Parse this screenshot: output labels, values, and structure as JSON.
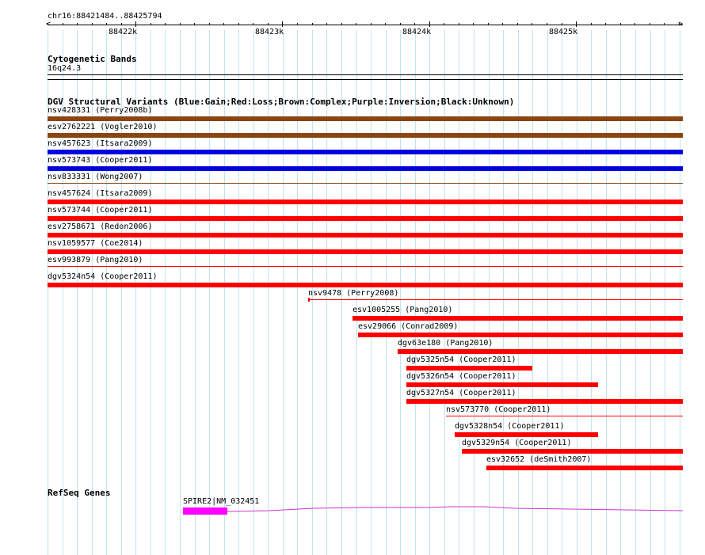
{
  "ruler": {
    "position": "chr16:88421484..88425794",
    "ticks": [
      "88422k",
      "88423k",
      "88424k",
      "88425k"
    ]
  },
  "cytoband": {
    "title": "Cytogenetic Bands",
    "band": "16q24.3"
  },
  "dgv": {
    "title": "DGV Structural Variants (Blue:Gain;Red:Loss;Brown:Complex;Purple:Inversion;Black:Unknown)",
    "colors": {
      "brown": "#8b4513",
      "blue": "#0000dd",
      "red": "#ff0000"
    },
    "features": [
      {
        "label": "nsv428331 (Perry2008b)",
        "color": "brown"
      },
      {
        "label": "esv2762221 (Vogler2010)",
        "color": "brown"
      },
      {
        "label": "nsv457623 (Itsara2009)",
        "color": "blue"
      },
      {
        "label": "nsv573743 (Cooper2011)",
        "color": "blue"
      },
      {
        "label": "nsv833331 (Wong2007)",
        "color": "brown",
        "thin": true
      },
      {
        "label": "nsv457624 (Itsara2009)",
        "color": "red"
      },
      {
        "label": "nsv573744 (Cooper2011)",
        "color": "red"
      },
      {
        "label": "esv2758671 (Redon2006)",
        "color": "red"
      },
      {
        "label": "nsv1059577 (Coe2014)",
        "color": "red"
      },
      {
        "label": "esv993879 (Pang2010)",
        "color": "red",
        "thin": true
      },
      {
        "label": "dgv5324n54 (Cooper2011)",
        "color": "red"
      },
      {
        "label": "nsv9478 (Perry2008)",
        "color": "red",
        "thin": true
      },
      {
        "label": "esv1005255 (Pang2010)",
        "color": "red"
      },
      {
        "label": "esv29066 (Conrad2009)",
        "color": "red"
      },
      {
        "label": "dgv63e180 (Pang2010)",
        "color": "red"
      },
      {
        "label": "dgv5325n54 (Cooper2011)",
        "color": "red"
      },
      {
        "label": "dgv5326n54 (Cooper2011)",
        "color": "red"
      },
      {
        "label": "dgv5327n54 (Cooper2011)",
        "color": "red"
      },
      {
        "label": "nsv573770 (Cooper2011)",
        "color": "red",
        "thin": true
      },
      {
        "label": "dgv5328n54 (Cooper2011)",
        "color": "red"
      },
      {
        "label": "dgv5329n54 (Cooper2011)",
        "color": "red"
      },
      {
        "label": "esv32652 (deSmith2007)",
        "color": "red"
      }
    ]
  },
  "refseq": {
    "title": "RefSeq Genes",
    "gene_label": "SPIRE2|NM_032451",
    "exon_color": "#ff00ff",
    "intron_color": "#cc33cc"
  }
}
